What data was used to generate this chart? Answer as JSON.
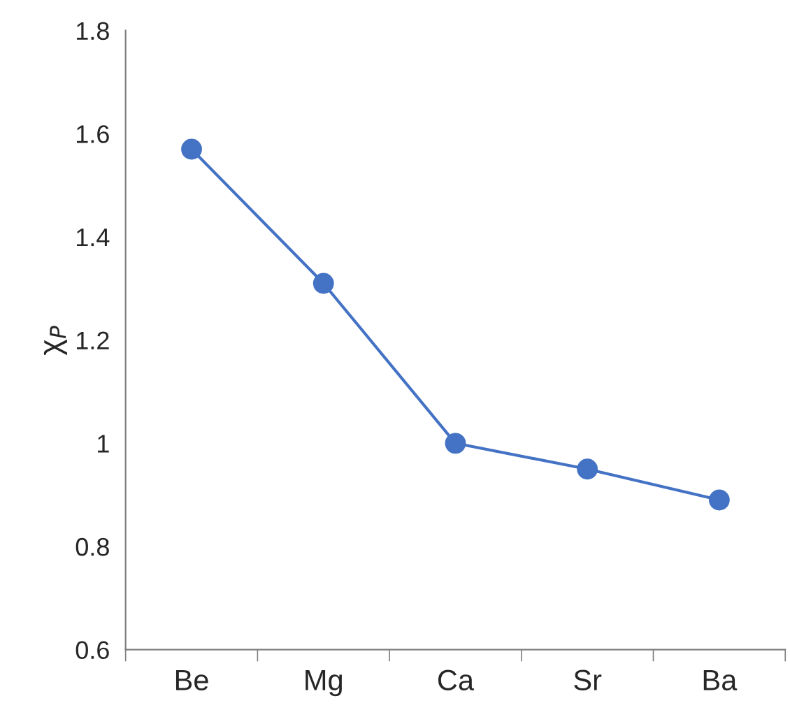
{
  "chart_data": {
    "type": "line",
    "ylabel": "χ$_{P}$",
    "categories": [
      "Be",
      "Mg",
      "Ca",
      "Sr",
      "Ba"
    ],
    "series": [
      {
        "color": "#4472c4",
        "values": [
          1.57,
          1.31,
          1.0,
          0.95,
          0.89
        ]
      }
    ],
    "ylim": [
      0.6,
      1.8
    ],
    "yticks": [
      0.6,
      0.8,
      {
        "value": 1.0,
        "label": "1"
      },
      1.2,
      1.4,
      1.6,
      1.8
    ],
    "marker": "circle",
    "line_style": "solid",
    "grid": false
  }
}
